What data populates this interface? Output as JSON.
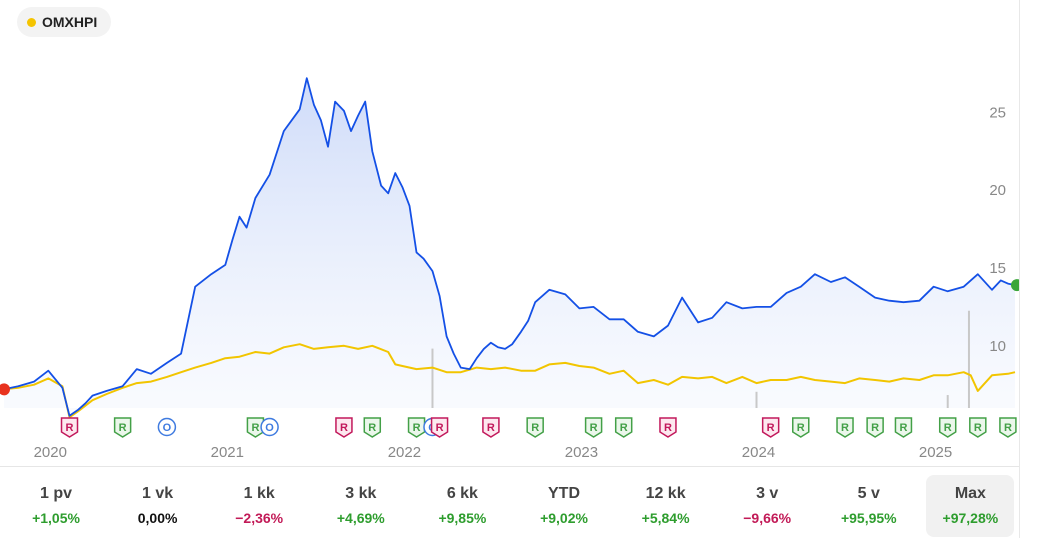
{
  "legend": {
    "symbol": "OMXHPI",
    "dot_color": "#f5c400"
  },
  "colors": {
    "price_line": "#1450e6",
    "index_line": "#f2c500",
    "area_fill": "#dbe5fb",
    "start_marker": "#e8321e",
    "end_marker": "#3aa63a",
    "event_r": "#c2185b",
    "event_green": "#43a047",
    "event_o": "#3f7be0"
  },
  "chart_data": {
    "type": "line",
    "title": "",
    "ylim": [
      6,
      28.5
    ],
    "y_ticks": [
      10,
      15,
      20,
      25
    ],
    "x_ticks": [
      "2020",
      "2021",
      "2022",
      "2023",
      "2024",
      "2025"
    ],
    "series": [
      {
        "name": "",
        "x": [
          2019.75,
          2019.83,
          2019.92,
          2020.0,
          2020.08,
          2020.12,
          2020.17,
          2020.21,
          2020.25,
          2020.33,
          2020.42,
          2020.5,
          2020.58,
          2020.67,
          2020.75,
          2020.83,
          2020.92,
          2021.0,
          2021.04,
          2021.08,
          2021.12,
          2021.17,
          2021.25,
          2021.33,
          2021.42,
          2021.46,
          2021.5,
          2021.54,
          2021.58,
          2021.62,
          2021.67,
          2021.71,
          2021.75,
          2021.79,
          2021.83,
          2021.88,
          2021.92,
          2021.96,
          2022.0,
          2022.04,
          2022.08,
          2022.12,
          2022.17,
          2022.21,
          2022.25,
          2022.29,
          2022.33,
          2022.38,
          2022.42,
          2022.46,
          2022.5,
          2022.54,
          2022.58,
          2022.62,
          2022.67,
          2022.71,
          2022.75,
          2022.83,
          2022.92,
          2023.0,
          2023.08,
          2023.17,
          2023.25,
          2023.33,
          2023.42,
          2023.5,
          2023.58,
          2023.67,
          2023.75,
          2023.83,
          2023.92,
          2024.0,
          2024.08,
          2024.17,
          2024.25,
          2024.33,
          2024.42,
          2024.5,
          2024.58,
          2024.67,
          2024.75,
          2024.83,
          2024.92,
          2025.0,
          2025.08,
          2025.17,
          2025.25,
          2025.33,
          2025.38,
          2025.42,
          2025.46
        ],
        "values": [
          7.2,
          7.4,
          7.7,
          8.4,
          7.3,
          5.5,
          5.9,
          6.3,
          6.8,
          7.1,
          7.4,
          8.5,
          8.2,
          8.9,
          9.5,
          13.8,
          14.6,
          15.2,
          16.8,
          18.3,
          17.6,
          19.5,
          21.0,
          23.8,
          25.2,
          27.2,
          25.5,
          24.5,
          22.8,
          25.7,
          25.1,
          23.8,
          24.8,
          25.7,
          22.5,
          20.3,
          19.8,
          21.1,
          20.2,
          19.0,
          16.0,
          15.6,
          14.8,
          13.2,
          10.6,
          9.5,
          8.6,
          8.5,
          9.2,
          9.8,
          10.2,
          9.9,
          9.8,
          10.1,
          10.9,
          11.6,
          12.8,
          13.6,
          13.3,
          12.4,
          12.5,
          11.7,
          11.7,
          10.9,
          10.6,
          11.3,
          13.1,
          11.5,
          11.8,
          12.8,
          12.4,
          12.5,
          12.5,
          13.4,
          13.8,
          14.6,
          14.1,
          14.4,
          13.8,
          13.1,
          12.9,
          12.8,
          12.9,
          13.8,
          13.5,
          13.8,
          14.6,
          13.6,
          14.2,
          14.0,
          13.9
        ]
      },
      {
        "name": "OMXHPI",
        "x": [
          2019.75,
          2019.83,
          2019.92,
          2020.0,
          2020.08,
          2020.12,
          2020.17,
          2020.25,
          2020.33,
          2020.42,
          2020.5,
          2020.58,
          2020.67,
          2020.75,
          2020.83,
          2020.92,
          2021.0,
          2021.08,
          2021.17,
          2021.25,
          2021.33,
          2021.42,
          2021.5,
          2021.58,
          2021.67,
          2021.75,
          2021.83,
          2021.92,
          2021.96,
          2022.0,
          2022.08,
          2022.17,
          2022.25,
          2022.33,
          2022.42,
          2022.5,
          2022.58,
          2022.67,
          2022.75,
          2022.83,
          2022.92,
          2023.0,
          2023.08,
          2023.17,
          2023.25,
          2023.33,
          2023.42,
          2023.5,
          2023.58,
          2023.67,
          2023.75,
          2023.83,
          2023.92,
          2024.0,
          2024.08,
          2024.17,
          2024.25,
          2024.33,
          2024.42,
          2024.5,
          2024.58,
          2024.67,
          2024.75,
          2024.83,
          2024.92,
          2025.0,
          2025.08,
          2025.17,
          2025.21,
          2025.25,
          2025.33,
          2025.42,
          2025.46
        ],
        "values": [
          7.2,
          7.3,
          7.5,
          7.9,
          7.4,
          5.4,
          5.8,
          6.5,
          6.9,
          7.3,
          7.6,
          7.7,
          8.0,
          8.3,
          8.6,
          8.9,
          9.2,
          9.3,
          9.6,
          9.5,
          9.9,
          10.1,
          9.8,
          9.9,
          10.0,
          9.8,
          10.0,
          9.6,
          8.8,
          8.7,
          8.5,
          8.6,
          8.3,
          8.3,
          8.6,
          8.5,
          8.6,
          8.4,
          8.4,
          8.8,
          8.9,
          8.7,
          8.6,
          8.2,
          8.4,
          7.6,
          7.8,
          7.5,
          8.0,
          7.9,
          8.0,
          7.6,
          8.0,
          7.6,
          7.8,
          7.8,
          8.0,
          7.8,
          7.7,
          7.6,
          7.9,
          7.8,
          7.7,
          7.9,
          7.8,
          8.1,
          8.1,
          8.3,
          8.1,
          7.1,
          8.1,
          8.2,
          8.3
        ]
      }
    ],
    "volume_spikes": [
      {
        "x": 2022.17,
        "value": 0.55
      },
      {
        "x": 2025.2,
        "value": 0.9
      },
      {
        "x": 2024.0,
        "value": 0.15
      },
      {
        "x": 2025.08,
        "value": 0.12
      }
    ],
    "events": [
      {
        "x": 2020.12,
        "label": "R",
        "kind": "r"
      },
      {
        "x": 2020.42,
        "label": "R",
        "kind": "g"
      },
      {
        "x": 2020.67,
        "label": "O",
        "kind": "o"
      },
      {
        "x": 2021.17,
        "label": "R",
        "kind": "g"
      },
      {
        "x": 2021.25,
        "label": "O",
        "kind": "o"
      },
      {
        "x": 2021.67,
        "label": "R",
        "kind": "r"
      },
      {
        "x": 2021.83,
        "label": "R",
        "kind": "g"
      },
      {
        "x": 2022.08,
        "label": "R",
        "kind": "g"
      },
      {
        "x": 2022.17,
        "label": "O",
        "kind": "o"
      },
      {
        "x": 2022.21,
        "label": "R",
        "kind": "r"
      },
      {
        "x": 2022.5,
        "label": "R",
        "kind": "r"
      },
      {
        "x": 2022.75,
        "label": "R",
        "kind": "g"
      },
      {
        "x": 2023.08,
        "label": "R",
        "kind": "g"
      },
      {
        "x": 2023.25,
        "label": "R",
        "kind": "g"
      },
      {
        "x": 2023.5,
        "label": "R",
        "kind": "r"
      },
      {
        "x": 2024.08,
        "label": "R",
        "kind": "r"
      },
      {
        "x": 2024.25,
        "label": "R",
        "kind": "g"
      },
      {
        "x": 2024.5,
        "label": "R",
        "kind": "g"
      },
      {
        "x": 2024.67,
        "label": "R",
        "kind": "g"
      },
      {
        "x": 2024.83,
        "label": "R",
        "kind": "g"
      },
      {
        "x": 2025.08,
        "label": "R",
        "kind": "g"
      },
      {
        "x": 2025.25,
        "label": "R",
        "kind": "g"
      },
      {
        "x": 2025.42,
        "label": "R",
        "kind": "g"
      }
    ]
  },
  "ranges": [
    {
      "label": "1 pv",
      "change": "+1,05%",
      "tone": "pos",
      "active": false
    },
    {
      "label": "1 vk",
      "change": "0,00%",
      "tone": "neu",
      "active": false
    },
    {
      "label": "1 kk",
      "change": "−2,36%",
      "tone": "neg",
      "active": false
    },
    {
      "label": "3 kk",
      "change": "+4,69%",
      "tone": "pos",
      "active": false
    },
    {
      "label": "6 kk",
      "change": "+9,85%",
      "tone": "pos",
      "active": false
    },
    {
      "label": "YTD",
      "change": "+9,02%",
      "tone": "pos",
      "active": false
    },
    {
      "label": "12 kk",
      "change": "+5,84%",
      "tone": "pos",
      "active": false
    },
    {
      "label": "3 v",
      "change": "−9,66%",
      "tone": "neg",
      "active": false
    },
    {
      "label": "5 v",
      "change": "+95,95%",
      "tone": "pos",
      "active": false
    },
    {
      "label": "Max",
      "change": "+97,28%",
      "tone": "pos",
      "active": true
    }
  ]
}
